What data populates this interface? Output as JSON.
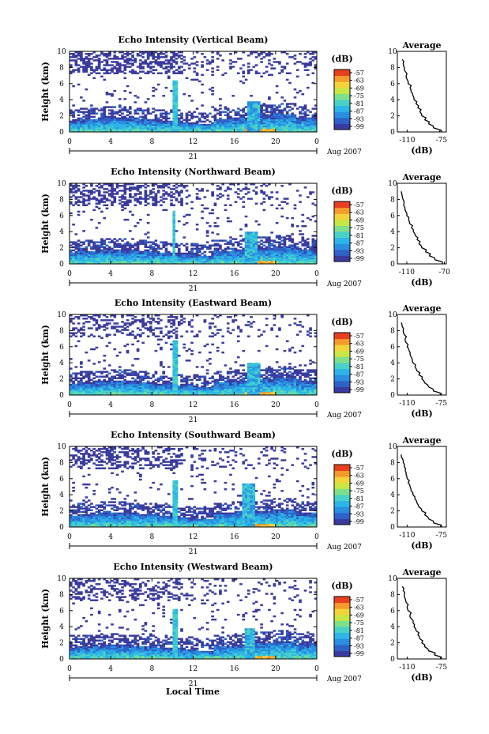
{
  "colors": {
    "colormap": [
      "#3a3b9e",
      "#2f62c8",
      "#2a8fe0",
      "#2cb6e8",
      "#49d1c8",
      "#7ee08a",
      "#c8e645",
      "#f2d43a",
      "#f59a2c",
      "#e8401e"
    ]
  },
  "shared": {
    "ylabel": "Height (km)",
    "date_label": "Aug 2007",
    "date_day": "21",
    "local_time_label": "Local Time",
    "avg_title": "Average",
    "avg_xlabel": "(dB)",
    "cb_unit": "(dB)"
  },
  "chart_data": [
    {
      "type": "heatmap",
      "title": "Echo Intensity (Vertical Beam)",
      "ylabel": "Height (km)",
      "x_ticks": [
        "0",
        "4",
        "8",
        "12",
        "16",
        "20",
        "0"
      ],
      "y_ticks": [
        "0",
        "2",
        "4",
        "6",
        "8",
        "10"
      ],
      "xlim": [
        0,
        24
      ],
      "ylim": [
        0,
        10
      ],
      "colorbar_ticks": [
        "-57",
        "-63",
        "-69",
        "-75",
        "-81",
        "-87",
        "-93",
        "-99"
      ],
      "colorbar_label": "(dB)",
      "sketch": {
        "spike_hour": 10.2,
        "spike_top_km": 6.5,
        "second_hour": 17.8,
        "second_top_km": 3.8,
        "upper_density": 0.55
      },
      "average_profile": {
        "title": "Average",
        "xlabel": "(dB)",
        "x_ticks": [
          "-110",
          "-75"
        ],
        "y_ticks": [
          "0",
          "2",
          "4",
          "6",
          "8",
          "10"
        ],
        "xlim": [
          -120,
          -70
        ],
        "ylim": [
          0,
          10
        ],
        "height_km": [
          0,
          0.5,
          1,
          1.5,
          2,
          2.5,
          3,
          3.5,
          4,
          4.5,
          5,
          5.5,
          6,
          6.5,
          7,
          7.5,
          8,
          8.5,
          9
        ],
        "db": [
          -77,
          -83,
          -88,
          -92,
          -95,
          -97,
          -99,
          -101,
          -103,
          -104,
          -106,
          -107,
          -109,
          -110,
          -111,
          -112,
          -113,
          -114,
          -115
        ]
      }
    },
    {
      "type": "heatmap",
      "title": "Echo Intensity (Northward Beam)",
      "ylabel": "Height (km)",
      "x_ticks": [
        "0",
        "4",
        "8",
        "12",
        "16",
        "20",
        "0"
      ],
      "y_ticks": [
        "0",
        "2",
        "4",
        "6",
        "8",
        "10"
      ],
      "xlim": [
        0,
        24
      ],
      "ylim": [
        0,
        10
      ],
      "colorbar_ticks": [
        "-57",
        "-63",
        "-69",
        "-75",
        "-81",
        "-87",
        "-93",
        "-99"
      ],
      "colorbar_label": "(dB)",
      "sketch": {
        "spike_hour": 10.1,
        "spike_top_km": 6.6,
        "second_hour": 17.6,
        "second_top_km": 4.0,
        "upper_density": 0.45
      },
      "average_profile": {
        "title": "Average",
        "xlabel": "(dB)",
        "x_ticks": [
          "-110",
          "-70"
        ],
        "y_ticks": [
          "0",
          "2",
          "4",
          "6",
          "8",
          "10"
        ],
        "xlim": [
          -120,
          -68
        ],
        "ylim": [
          0,
          10
        ],
        "height_km": [
          0,
          0.5,
          1,
          1.5,
          2,
          2.5,
          3,
          3.5,
          4,
          4.5,
          5,
          5.5,
          6,
          6.5,
          7,
          7.5,
          8,
          8.5,
          9
        ],
        "db": [
          -72,
          -80,
          -86,
          -90,
          -94,
          -97,
          -99,
          -101,
          -103,
          -105,
          -107,
          -108,
          -110,
          -111,
          -112,
          -113,
          -114,
          -115,
          -116
        ]
      }
    },
    {
      "type": "heatmap",
      "title": "Echo Intensity (Eastward Beam)",
      "ylabel": "Height (km)",
      "x_ticks": [
        "0",
        "4",
        "8",
        "12",
        "16",
        "20",
        "0"
      ],
      "y_ticks": [
        "0",
        "2",
        "4",
        "6",
        "8",
        "10"
      ],
      "xlim": [
        0,
        24
      ],
      "ylim": [
        0,
        10
      ],
      "colorbar_ticks": [
        "-57",
        "-63",
        "-69",
        "-75",
        "-81",
        "-87",
        "-93",
        "-99"
      ],
      "colorbar_label": "(dB)",
      "sketch": {
        "spike_hour": 10.2,
        "spike_top_km": 6.8,
        "second_hour": 17.8,
        "second_top_km": 4.0,
        "upper_density": 0.35
      },
      "average_profile": {
        "title": "Average",
        "xlabel": "(dB)",
        "x_ticks": [
          "-110",
          "-75"
        ],
        "y_ticks": [
          "0",
          "2",
          "4",
          "6",
          "8",
          "10"
        ],
        "xlim": [
          -120,
          -70
        ],
        "ylim": [
          0,
          10
        ],
        "height_km": [
          0,
          0.5,
          1,
          1.5,
          2,
          2.5,
          3,
          3.5,
          4,
          4.5,
          5,
          5.5,
          6,
          6.5,
          7,
          7.5,
          8,
          8.5,
          9
        ],
        "db": [
          -76,
          -83,
          -88,
          -92,
          -95,
          -98,
          -100,
          -102,
          -104,
          -105,
          -107,
          -108,
          -110,
          -111,
          -112,
          -113,
          -114,
          -115,
          -116
        ]
      }
    },
    {
      "type": "heatmap",
      "title": "Echo Intensity (Southward Beam)",
      "ylabel": "Height (km)",
      "x_ticks": [
        "0",
        "4",
        "8",
        "12",
        "16",
        "20",
        "0"
      ],
      "y_ticks": [
        "0",
        "2",
        "4",
        "6",
        "8",
        "10"
      ],
      "xlim": [
        0,
        24
      ],
      "ylim": [
        0,
        10
      ],
      "colorbar_ticks": [
        "-57",
        "-63",
        "-69",
        "-75",
        "-81",
        "-87",
        "-93",
        "-99"
      ],
      "colorbar_label": "(dB)",
      "sketch": {
        "spike_hour": 10.3,
        "spike_top_km": 5.8,
        "second_hour": 17.3,
        "second_top_km": 5.5,
        "upper_density": 0.4
      },
      "average_profile": {
        "title": "Average",
        "xlabel": "(dB)",
        "x_ticks": [
          "-110",
          "-75"
        ],
        "y_ticks": [
          "0",
          "2",
          "4",
          "6",
          "8",
          "10"
        ],
        "xlim": [
          -120,
          -70
        ],
        "ylim": [
          0,
          10
        ],
        "height_km": [
          0,
          0.5,
          1,
          1.5,
          2,
          2.5,
          3,
          3.5,
          4,
          4.5,
          5,
          5.5,
          6,
          6.5,
          7,
          7.5,
          8,
          8.5,
          9
        ],
        "db": [
          -76,
          -83,
          -88,
          -92,
          -95,
          -98,
          -100,
          -102,
          -104,
          -106,
          -107,
          -109,
          -110,
          -111,
          -112,
          -113,
          -114,
          -115,
          -116
        ]
      }
    },
    {
      "type": "heatmap",
      "title": "Echo Intensity (Westward Beam)",
      "ylabel": "Height (km)",
      "x_ticks": [
        "0",
        "4",
        "8",
        "12",
        "16",
        "20",
        "0"
      ],
      "y_ticks": [
        "0",
        "2",
        "4",
        "6",
        "8",
        "10"
      ],
      "xlim": [
        0,
        24
      ],
      "ylim": [
        0,
        10
      ],
      "colorbar_ticks": [
        "-57",
        "-63",
        "-69",
        "-75",
        "-81",
        "-87",
        "-93",
        "-99"
      ],
      "colorbar_label": "(dB)",
      "sketch": {
        "spike_hour": 10.2,
        "spike_top_km": 6.2,
        "second_hour": 17.5,
        "second_top_km": 3.8,
        "upper_density": 0.35
      },
      "average_profile": {
        "title": "Average",
        "xlabel": "(dB)",
        "x_ticks": [
          "-110",
          "-75"
        ],
        "y_ticks": [
          "0",
          "2",
          "4",
          "6",
          "8",
          "10"
        ],
        "xlim": [
          -120,
          -70
        ],
        "ylim": [
          0,
          10
        ],
        "height_km": [
          0,
          0.5,
          1,
          1.5,
          2,
          2.5,
          3,
          3.5,
          4,
          4.5,
          5,
          5.5,
          6,
          6.5,
          7,
          7.5,
          8,
          8.5,
          9
        ],
        "db": [
          -76,
          -82,
          -88,
          -92,
          -95,
          -97,
          -99,
          -101,
          -103,
          -104,
          -106,
          -107,
          -109,
          -110,
          -111,
          -112,
          -113,
          -114,
          -115
        ]
      }
    }
  ]
}
